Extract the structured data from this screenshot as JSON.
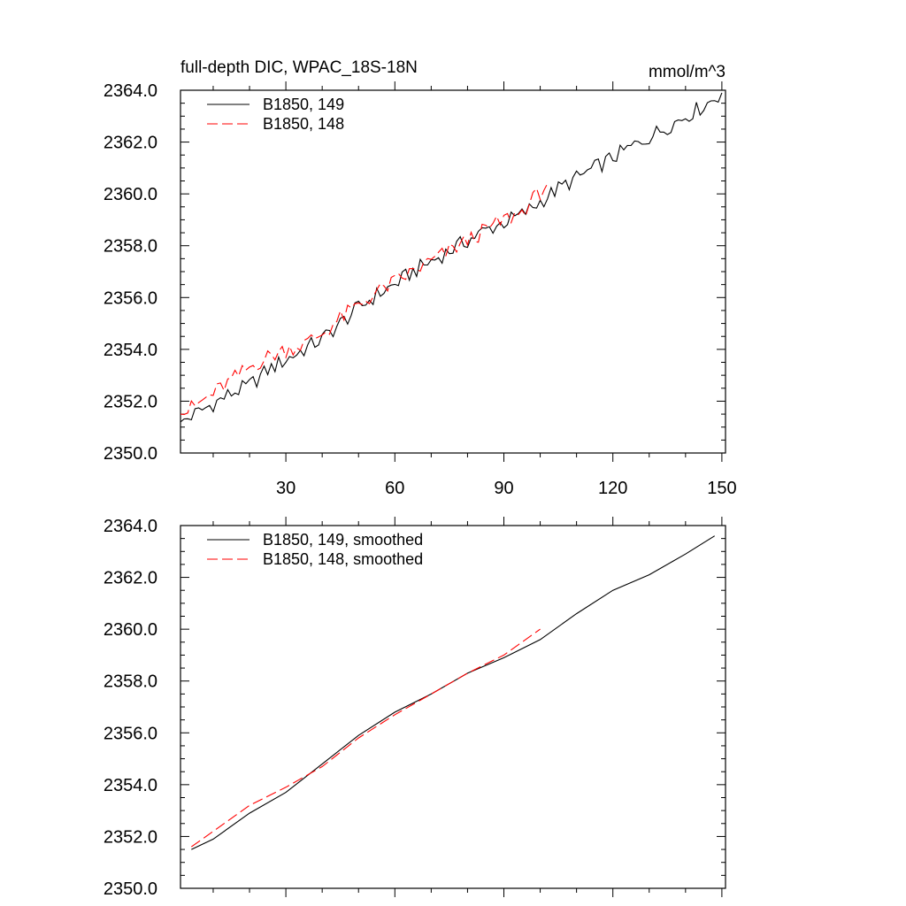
{
  "chart_data": [
    {
      "type": "line",
      "title": "full-depth DIC, WPAC_18S-18N",
      "units": "mmol/m^3",
      "xlim": [
        1,
        151
      ],
      "ylim": [
        2350,
        2364
      ],
      "x_ticks": [
        30,
        60,
        90,
        120,
        150
      ],
      "x_tick_labels": [
        "30",
        "60",
        "90",
        "120",
        "150"
      ],
      "y_ticks": [
        2350,
        2352,
        2354,
        2356,
        2358,
        2360,
        2362,
        2364
      ],
      "y_tick_labels": [
        "2350.0",
        "2352.0",
        "2354.0",
        "2356.0",
        "2358.0",
        "2360.0",
        "2362.0",
        "2364.0"
      ],
      "legend_position": "top-left",
      "series": [
        {
          "name": "B1850, 149",
          "color": "#000000",
          "dash": "solid",
          "x": [
            1,
            5,
            10,
            15,
            20,
            25,
            30,
            35,
            40,
            45,
            50,
            55,
            60,
            65,
            70,
            75,
            80,
            85,
            90,
            95,
            100,
            105,
            110,
            115,
            120,
            125,
            130,
            135,
            140,
            145,
            150
          ],
          "y": [
            2351.2,
            2351.5,
            2351.9,
            2352.3,
            2352.6,
            2353.2,
            2353.6,
            2354.0,
            2354.4,
            2355.0,
            2355.6,
            2356.1,
            2356.5,
            2357.0,
            2357.4,
            2357.8,
            2358.2,
            2358.6,
            2358.9,
            2359.2,
            2359.7,
            2360.2,
            2360.6,
            2361.0,
            2361.4,
            2361.8,
            2362.2,
            2362.6,
            2363.0,
            2363.4,
            2363.9
          ]
        },
        {
          "name": "B1850, 148",
          "color": "#ff0000",
          "dash": "dashed",
          "x": [
            1,
            5,
            10,
            15,
            20,
            25,
            30,
            35,
            40,
            45,
            50,
            55,
            60,
            65,
            70,
            75,
            80,
            85,
            90,
            95,
            102
          ],
          "y": [
            2351.5,
            2351.8,
            2352.3,
            2352.8,
            2353.3,
            2353.7,
            2354.0,
            2354.2,
            2354.6,
            2355.2,
            2355.7,
            2356.2,
            2356.6,
            2357.0,
            2357.4,
            2357.8,
            2358.2,
            2358.6,
            2359.0,
            2359.3,
            2360.4
          ]
        }
      ]
    },
    {
      "type": "line",
      "xlim": [
        1,
        151
      ],
      "ylim": [
        2350,
        2364
      ],
      "y_ticks": [
        2350,
        2352,
        2354,
        2356,
        2358,
        2360,
        2362,
        2364
      ],
      "y_tick_labels": [
        "2350.0",
        "2352.0",
        "2354.0",
        "2356.0",
        "2358.0",
        "2360.0",
        "2362.0",
        "2364.0"
      ],
      "legend_position": "top-left",
      "series": [
        {
          "name": "B1850, 149, smoothed",
          "color": "#000000",
          "dash": "solid",
          "x": [
            4,
            10,
            20,
            30,
            40,
            50,
            60,
            70,
            80,
            90,
            100,
            110,
            120,
            130,
            140,
            148
          ],
          "y": [
            2351.5,
            2351.9,
            2352.9,
            2353.7,
            2354.8,
            2355.9,
            2356.8,
            2357.5,
            2358.3,
            2358.9,
            2359.6,
            2360.6,
            2361.5,
            2362.1,
            2362.9,
            2363.6
          ]
        },
        {
          "name": "B1850, 148, smoothed",
          "color": "#ff0000",
          "dash": "dashed",
          "x": [
            4,
            10,
            20,
            30,
            40,
            50,
            60,
            70,
            80,
            90,
            100
          ],
          "y": [
            2351.6,
            2352.2,
            2353.2,
            2353.9,
            2354.7,
            2355.8,
            2356.7,
            2357.5,
            2358.3,
            2359.0,
            2360.0
          ]
        }
      ]
    }
  ]
}
